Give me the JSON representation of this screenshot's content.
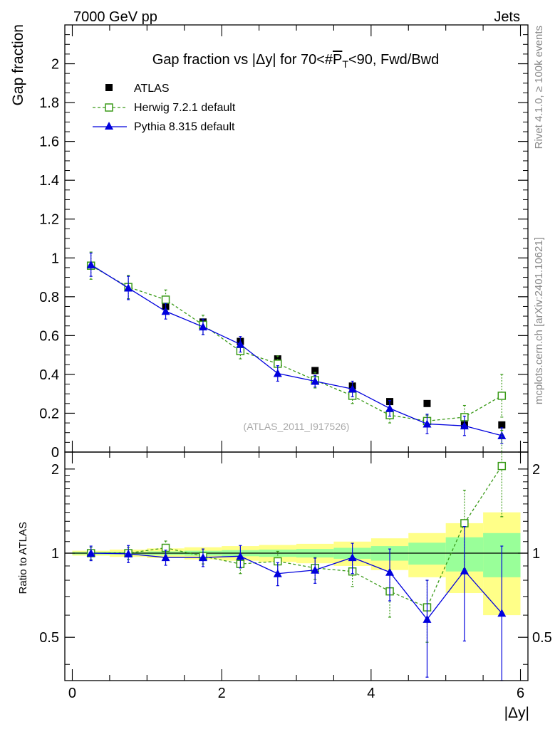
{
  "header": {
    "left": "7000 GeV pp",
    "right": "Jets",
    "side_top": "Rivet 4.1.0, ≥ 100k events",
    "side_bottom": "mcplots.cern.ch [arXiv:2401.10621]",
    "watermark": "(ATLAS_2011_I917526)"
  },
  "chart_data": {
    "type": "scatter",
    "title": "Gap fraction vs |Δy| for 70<#bar{P}_{T}<90, Fwd/Bwd",
    "title_parts": {
      "pre": "Gap fraction vs |Δy| for 70<#",
      "p": "P",
      "sub": "T",
      "post": "<90, Fwd/Bwd"
    },
    "xlabel": "|Δy|",
    "ylabel": "Gap fraction",
    "ratio_ylabel": "Ratio to ATLAS",
    "xlim": [
      -0.1,
      6.1
    ],
    "ylim": [
      0,
      2.2
    ],
    "ratio_ylim": [
      0.35,
      2.3
    ],
    "ratio_log": true,
    "x_ticks": [
      "0",
      "2",
      "4",
      "6"
    ],
    "y_ticks": [
      "0",
      "0.2",
      "0.4",
      "0.6",
      "0.8",
      "1",
      "1.2",
      "1.4",
      "1.6",
      "1.8",
      "2"
    ],
    "ratio_ticks": [
      "0.5",
      "1",
      "2"
    ],
    "legend": [
      "ATLAS",
      "Herwig 7.2.1 default",
      "Pythia 8.315 default"
    ],
    "x": [
      0.25,
      0.75,
      1.25,
      1.75,
      2.25,
      2.75,
      3.25,
      3.75,
      4.25,
      4.75,
      5.25,
      5.75
    ],
    "series": [
      {
        "name": "ATLAS",
        "color": "#000000",
        "values": [
          0.96,
          0.85,
          0.75,
          0.67,
          0.57,
          0.48,
          0.42,
          0.34,
          0.26,
          0.25,
          0.14,
          0.14
        ],
        "err": [
          0.01,
          0.01,
          0.01,
          0.01,
          0.01,
          0.01,
          0.01,
          0.01,
          0.01,
          0.01,
          0.01,
          0.01
        ]
      },
      {
        "name": "Herwig 7.2.1 default",
        "color": "#3a9a18",
        "values": [
          0.96,
          0.85,
          0.785,
          0.655,
          0.52,
          0.455,
          0.37,
          0.29,
          0.19,
          0.16,
          0.18,
          0.29
        ],
        "err": [
          0.07,
          0.06,
          0.05,
          0.05,
          0.04,
          0.04,
          0.04,
          0.04,
          0.04,
          0.03,
          0.06,
          0.11
        ],
        "ratio": [
          1.0,
          1.0,
          1.045,
          0.975,
          0.915,
          0.935,
          0.885,
          0.86,
          0.73,
          0.64,
          1.28,
          2.05
        ],
        "ratio_err": [
          0.05,
          0.05,
          0.06,
          0.06,
          0.07,
          0.08,
          0.08,
          0.1,
          0.14,
          0.16,
          0.4,
          0.7
        ]
      },
      {
        "name": "Pythia 8.315 default",
        "color": "#0000dd",
        "values": [
          0.965,
          0.845,
          0.725,
          0.645,
          0.555,
          0.405,
          0.365,
          0.325,
          0.225,
          0.145,
          0.135,
          0.085
        ],
        "err": [
          0.06,
          0.06,
          0.04,
          0.04,
          0.04,
          0.04,
          0.03,
          0.04,
          0.04,
          0.05,
          0.05,
          0.04
        ],
        "ratio": [
          1.0,
          0.995,
          0.965,
          0.965,
          0.975,
          0.845,
          0.87,
          0.965,
          0.855,
          0.58,
          0.865,
          0.61
        ],
        "ratio_err": [
          0.06,
          0.07,
          0.06,
          0.07,
          0.09,
          0.08,
          0.09,
          0.12,
          0.18,
          0.22,
          0.38,
          0.45
        ]
      }
    ],
    "bands": {
      "inner": [
        0.01,
        0.01,
        0.015,
        0.02,
        0.025,
        0.03,
        0.035,
        0.045,
        0.06,
        0.09,
        0.14,
        0.18
      ],
      "outer": [
        0.02,
        0.03,
        0.04,
        0.05,
        0.06,
        0.07,
        0.08,
        0.1,
        0.13,
        0.18,
        0.28,
        0.4
      ],
      "inner_color": "#99ff99",
      "outer_color": "#ffff88"
    }
  }
}
